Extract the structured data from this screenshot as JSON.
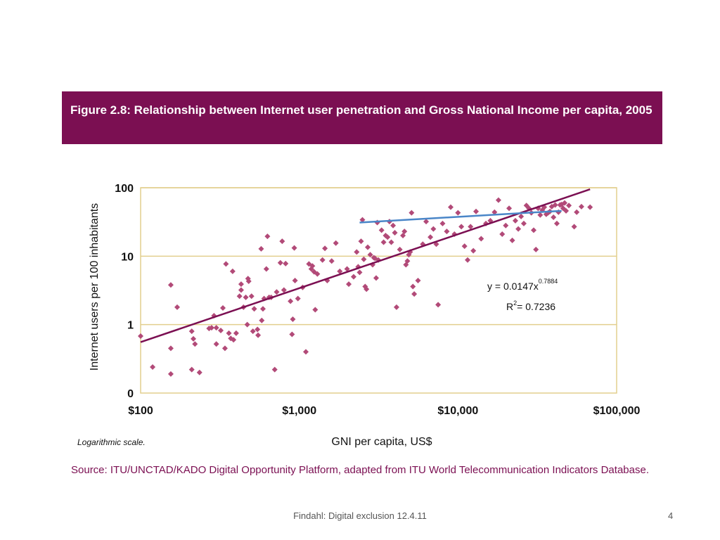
{
  "figure": {
    "title": "Figure 2.8: Relationship between Internet user penetration and Gross National Income per capita, 2005",
    "note": "Logarithmic scale.",
    "source": "Source: ITU/UNCTAD/KADO Digital Opportunity Platform, adapted from ITU World Telecommunication Indicators Database."
  },
  "footer": {
    "text": "Findahl: Digital exclusion 12.4.11",
    "page": "4"
  },
  "colors": {
    "banner": "#7b0f52",
    "points": "#b24a78",
    "trend": "#7b0f52",
    "fit_line": "#4a86c8",
    "grid": "#e2cf8e"
  },
  "chart_data": {
    "type": "scatter",
    "xscale": "log",
    "yscale": "log",
    "xlabel": "GNI per capita, US$",
    "ylabel": "Internet users per 100 inhabitants",
    "xlim": [
      100,
      100000
    ],
    "ylim": [
      0.1,
      100
    ],
    "xticks": [
      100,
      1000,
      10000,
      100000
    ],
    "xticklabels": [
      "$100",
      "$1,000",
      "$10,000",
      "$100,000"
    ],
    "yticks": [
      0.1,
      1,
      10,
      100
    ],
    "yticklabels": [
      "0",
      "1",
      "10",
      "100"
    ],
    "grid": true,
    "equation": {
      "base": "y = 0.0147x",
      "exponent": "0.7884",
      "r2_label": "R",
      "r2_exp": "2",
      "r2_value": "= 0.7236"
    },
    "trendline": {
      "coef": 0.0147,
      "exp": 0.7884,
      "x": [
        100,
        68000
      ]
    },
    "fit_line": {
      "x": [
        2400,
        45000
      ],
      "y": [
        31,
        46
      ]
    },
    "points": [
      [
        100,
        0.68
      ],
      [
        119,
        0.24
      ],
      [
        155,
        3.8
      ],
      [
        155,
        0.45
      ],
      [
        155,
        0.19
      ],
      [
        170,
        1.8
      ],
      [
        210,
        0.8
      ],
      [
        210,
        0.22
      ],
      [
        215,
        0.62
      ],
      [
        220,
        0.52
      ],
      [
        235,
        0.2
      ],
      [
        270,
        0.88
      ],
      [
        280,
        0.9
      ],
      [
        290,
        1.35
      ],
      [
        300,
        0.9
      ],
      [
        300,
        0.52
      ],
      [
        320,
        0.82
      ],
      [
        330,
        1.75
      ],
      [
        340,
        0.45
      ],
      [
        345,
        7.7
      ],
      [
        360,
        0.75
      ],
      [
        370,
        0.63
      ],
      [
        380,
        6.0
      ],
      [
        385,
        0.6
      ],
      [
        400,
        0.75
      ],
      [
        420,
        2.6
      ],
      [
        430,
        3.9
      ],
      [
        430,
        3.2
      ],
      [
        445,
        1.8
      ],
      [
        460,
        2.5
      ],
      [
        470,
        1.0
      ],
      [
        475,
        4.7
      ],
      [
        480,
        4.3
      ],
      [
        500,
        2.6
      ],
      [
        510,
        0.8
      ],
      [
        520,
        1.7
      ],
      [
        545,
        0.85
      ],
      [
        550,
        0.7
      ],
      [
        575,
        12.8
      ],
      [
        580,
        1.15
      ],
      [
        590,
        1.7
      ],
      [
        600,
        2.4
      ],
      [
        620,
        6.5
      ],
      [
        630,
        19.5
      ],
      [
        645,
        2.5
      ],
      [
        665,
        2.5
      ],
      [
        700,
        0.22
      ],
      [
        720,
        3.0
      ],
      [
        760,
        8.0
      ],
      [
        780,
        16.5
      ],
      [
        800,
        3.2
      ],
      [
        820,
        7.8
      ],
      [
        880,
        2.2
      ],
      [
        900,
        0.72
      ],
      [
        910,
        1.2
      ],
      [
        930,
        13.2
      ],
      [
        940,
        4.4
      ],
      [
        980,
        2.4
      ],
      [
        1050,
        3.5
      ],
      [
        1100,
        0.4
      ],
      [
        1150,
        7.7
      ],
      [
        1190,
        6.5
      ],
      [
        1210,
        7.2
      ],
      [
        1240,
        5.9
      ],
      [
        1260,
        1.65
      ],
      [
        1300,
        5.5
      ],
      [
        1400,
        8.8
      ],
      [
        1450,
        13
      ],
      [
        1500,
        4.4
      ],
      [
        1600,
        8.5
      ],
      [
        1700,
        15.5
      ],
      [
        1800,
        6.0
      ],
      [
        2000,
        6.5
      ],
      [
        2050,
        3.9
      ],
      [
        2200,
        5.0
      ],
      [
        2300,
        11.5
      ],
      [
        2350,
        7.0
      ],
      [
        2400,
        5.8
      ],
      [
        2450,
        16.5
      ],
      [
        2500,
        34
      ],
      [
        2550,
        9.0
      ],
      [
        2600,
        3.6
      ],
      [
        2650,
        3.3
      ],
      [
        2700,
        13.5
      ],
      [
        2800,
        10.5
      ],
      [
        2900,
        7.5
      ],
      [
        2950,
        9.5
      ],
      [
        3000,
        9.3
      ],
      [
        3050,
        4.8
      ],
      [
        3100,
        31
      ],
      [
        3150,
        8.8
      ],
      [
        3300,
        24
      ],
      [
        3400,
        16
      ],
      [
        3500,
        20
      ],
      [
        3600,
        19
      ],
      [
        3700,
        32
      ],
      [
        3800,
        16
      ],
      [
        3900,
        28
      ],
      [
        4000,
        22
      ],
      [
        4100,
        1.8
      ],
      [
        4300,
        12.5
      ],
      [
        4500,
        20
      ],
      [
        4600,
        23
      ],
      [
        4700,
        7.5
      ],
      [
        4800,
        8.5
      ],
      [
        4900,
        10.5
      ],
      [
        5000,
        11.5
      ],
      [
        5100,
        43
      ],
      [
        5200,
        3.6
      ],
      [
        5300,
        2.8
      ],
      [
        5600,
        4.4
      ],
      [
        6000,
        15
      ],
      [
        6300,
        32
      ],
      [
        6700,
        19
      ],
      [
        7000,
        25
      ],
      [
        7300,
        15
      ],
      [
        7500,
        1.95
      ],
      [
        8000,
        30
      ],
      [
        8500,
        23
      ],
      [
        9000,
        52
      ],
      [
        9500,
        21
      ],
      [
        10000,
        43
      ],
      [
        10500,
        27
      ],
      [
        11000,
        14
      ],
      [
        11500,
        8.8
      ],
      [
        12000,
        27
      ],
      [
        12500,
        12
      ],
      [
        13000,
        45
      ],
      [
        14000,
        18
      ],
      [
        15000,
        30
      ],
      [
        16000,
        33
      ],
      [
        17000,
        44
      ],
      [
        18000,
        66
      ],
      [
        19000,
        21
      ],
      [
        20000,
        28
      ],
      [
        21000,
        50
      ],
      [
        22000,
        17
      ],
      [
        23000,
        33
      ],
      [
        24000,
        25
      ],
      [
        25000,
        38
      ],
      [
        26000,
        30
      ],
      [
        27000,
        55
      ],
      [
        28000,
        50
      ],
      [
        29000,
        43
      ],
      [
        30000,
        24
      ],
      [
        31000,
        12.5
      ],
      [
        32000,
        50
      ],
      [
        33000,
        40
      ],
      [
        34000,
        47
      ],
      [
        35000,
        52
      ],
      [
        36000,
        41
      ],
      [
        37000,
        43
      ],
      [
        38000,
        45
      ],
      [
        39000,
        53
      ],
      [
        40000,
        37
      ],
      [
        41000,
        56
      ],
      [
        42000,
        30
      ],
      [
        43000,
        44
      ],
      [
        44000,
        56
      ],
      [
        45000,
        57
      ],
      [
        46000,
        50
      ],
      [
        47000,
        60
      ],
      [
        48000,
        46
      ],
      [
        50000,
        55
      ],
      [
        54000,
        27
      ],
      [
        56000,
        44
      ],
      [
        60000,
        53
      ],
      [
        68000,
        52
      ]
    ]
  }
}
